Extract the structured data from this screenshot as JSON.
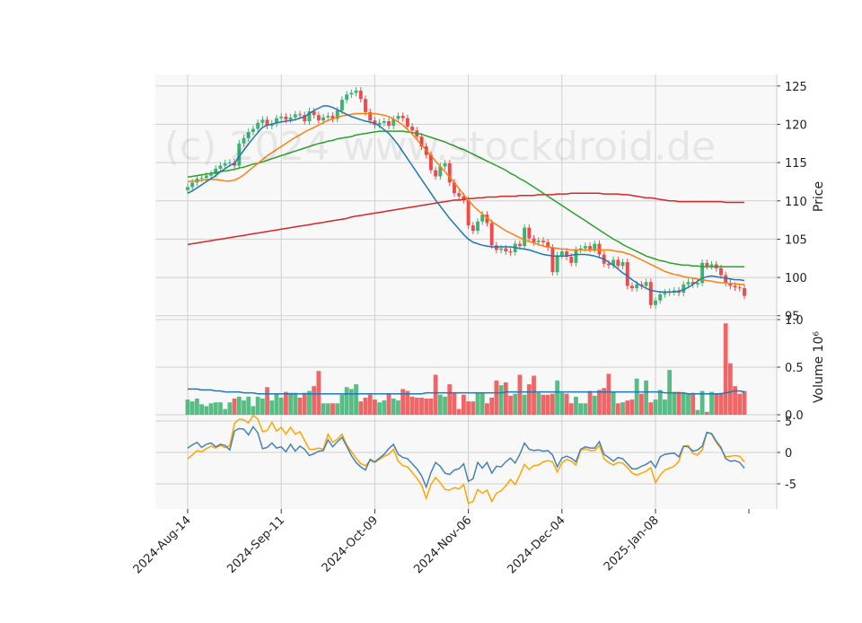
{
  "watermark": "(c) 2024 www.stockdroid.de",
  "colors": {
    "up": "#3cb371",
    "down": "#ef4b4b",
    "ma_short": "#1f77b4",
    "ma_mid": "#ff7f0e",
    "ma_long": "#2ca02c",
    "ma_200": "#d62728",
    "volume_ma": "#1f77b4",
    "osc_a": "#4682b4",
    "osc_b": "#ffa500",
    "panel_bg": "#f8f8f8",
    "grid": "#d0d0d0"
  },
  "chart_data": [
    {
      "type": "candlestick",
      "ylabel": "Price",
      "ylim": [
        94.5,
        126.5
      ],
      "yticks": [
        "95",
        "100",
        "105",
        "110",
        "115",
        "120",
        "125"
      ],
      "xtick_labels": [
        "2024-Aug-14",
        "2024-Sep-11",
        "2024-Oct-09",
        "2024-Nov-06",
        "2024-Dec-04",
        "2025-Jan-08"
      ],
      "xtick_index": [
        0,
        20,
        40,
        60,
        80,
        100
      ],
      "x_count": 120,
      "close": [
        111.8,
        112.4,
        112.9,
        113.0,
        113.3,
        113.5,
        114.2,
        114.6,
        114.9,
        115.0,
        114.6,
        117.5,
        118.2,
        119.0,
        119.4,
        120.2,
        120.6,
        119.8,
        120.1,
        120.8,
        121.0,
        120.6,
        120.9,
        121.3,
        121.2,
        120.4,
        121.7,
        121.2,
        120.5,
        120.9,
        121.1,
        120.7,
        121.8,
        123.2,
        123.9,
        124.1,
        124.4,
        123.3,
        121.6,
        120.5,
        119.9,
        120.2,
        120.4,
        119.8,
        120.7,
        121.1,
        120.8,
        119.7,
        119.2,
        118.4,
        117.1,
        116.0,
        114.0,
        113.2,
        114.5,
        114.9,
        112.4,
        111.0,
        110.6,
        110.1,
        106.8,
        106.1,
        107.3,
        108.2,
        107.1,
        104.2,
        103.6,
        103.8,
        103.4,
        103.3,
        104.4,
        104.1,
        106.5,
        105.1,
        104.6,
        104.8,
        104.6,
        103.9,
        100.7,
        102.9,
        103.4,
        102.7,
        101.9,
        103.6,
        103.8,
        104.1,
        103.7,
        104.4,
        103.0,
        101.8,
        101.6,
        102.3,
        101.5,
        102.0,
        98.9,
        98.6,
        99.1,
        98.9,
        99.4,
        96.4,
        97.0,
        97.8,
        98.0,
        98.1,
        98.3,
        98.0,
        99.1,
        99.4,
        99.1,
        99.3,
        101.9,
        101.5,
        101.7,
        101.2,
        100.3,
        99.3,
        98.9,
        98.7,
        98.6,
        97.6
      ],
      "ma_short": [
        111.0,
        111.3,
        111.7,
        112.1,
        112.5,
        112.9,
        113.3,
        113.8,
        114.2,
        114.6,
        114.9,
        115.8,
        116.6,
        117.4,
        118.2,
        118.9,
        119.6,
        119.9,
        120.0,
        120.2,
        120.3,
        120.4,
        120.5,
        120.6,
        120.8,
        121.0,
        121.4,
        121.8,
        122.1,
        122.4,
        122.4,
        122.2,
        121.9,
        121.6,
        121.3,
        121.0,
        120.8,
        120.6,
        120.4,
        120.3,
        120.1,
        119.8,
        119.3,
        118.8,
        118.1,
        117.3,
        116.4,
        115.5,
        114.6,
        113.7,
        112.8,
        111.9,
        111.0,
        110.1,
        109.3,
        108.5,
        107.7,
        107.0,
        106.3,
        105.6,
        105.0,
        104.6,
        104.4,
        104.2,
        104.1,
        104.0,
        104.0,
        104.0,
        104.0,
        104.0,
        103.9,
        103.8,
        103.7,
        103.6,
        103.4,
        103.2,
        103.0,
        102.9,
        102.8,
        102.8,
        102.8,
        102.8,
        102.9,
        103.0,
        103.0,
        103.0,
        102.9,
        102.8,
        102.6,
        102.4,
        102.0,
        101.6,
        101.1,
        100.6,
        100.2,
        99.7,
        99.3,
        98.9,
        98.6,
        98.3,
        98.2,
        98.1,
        98.1,
        98.1,
        98.1,
        98.2,
        98.4,
        98.7,
        99.1,
        99.5,
        99.9,
        100.1,
        100.2,
        100.1,
        100.0,
        99.9,
        99.8,
        99.7,
        99.7,
        99.6
      ],
      "ma_mid": [
        112.5,
        112.6,
        112.6,
        112.7,
        112.8,
        112.8,
        112.8,
        112.7,
        112.6,
        112.6,
        112.7,
        113.0,
        113.4,
        113.9,
        114.4,
        114.9,
        115.4,
        115.9,
        116.3,
        116.7,
        117.1,
        117.5,
        117.9,
        118.3,
        118.6,
        119.0,
        119.3,
        119.6,
        119.9,
        120.2,
        120.5,
        120.7,
        120.9,
        121.1,
        121.2,
        121.3,
        121.4,
        121.4,
        121.4,
        121.4,
        121.4,
        121.3,
        121.2,
        121.0,
        120.7,
        120.3,
        119.9,
        119.3,
        118.7,
        118.0,
        117.3,
        116.6,
        115.9,
        115.2,
        114.5,
        113.8,
        113.1,
        112.4,
        111.6,
        110.8,
        110.1,
        109.4,
        108.8,
        108.3,
        107.8,
        107.3,
        106.9,
        106.5,
        106.1,
        105.8,
        105.5,
        105.2,
        104.9,
        104.7,
        104.5,
        104.3,
        104.1,
        104.0,
        103.9,
        103.8,
        103.7,
        103.7,
        103.6,
        103.6,
        103.6,
        103.6,
        103.6,
        103.6,
        103.6,
        103.6,
        103.6,
        103.5,
        103.4,
        103.3,
        103.1,
        102.9,
        102.6,
        102.3,
        102.0,
        101.7,
        101.4,
        101.1,
        100.8,
        100.6,
        100.4,
        100.3,
        100.1,
        100.0,
        99.9,
        99.8,
        99.7,
        99.6,
        99.5,
        99.4,
        99.3,
        99.3,
        99.2,
        99.2,
        99.1,
        99.1
      ],
      "ma_long": [
        113.1,
        113.2,
        113.3,
        113.4,
        113.5,
        113.6,
        113.7,
        113.8,
        113.9,
        114.0,
        114.1,
        114.3,
        114.4,
        114.6,
        114.8,
        114.9,
        115.1,
        115.3,
        115.5,
        115.7,
        115.9,
        116.1,
        116.3,
        116.5,
        116.7,
        116.9,
        117.1,
        117.3,
        117.5,
        117.6,
        117.8,
        117.9,
        118.1,
        118.2,
        118.3,
        118.4,
        118.6,
        118.7,
        118.8,
        118.9,
        119.0,
        119.1,
        119.1,
        119.1,
        119.1,
        119.1,
        119.1,
        119.0,
        118.9,
        118.8,
        118.7,
        118.5,
        118.3,
        118.1,
        117.9,
        117.7,
        117.4,
        117.2,
        116.9,
        116.7,
        116.4,
        116.1,
        115.8,
        115.5,
        115.2,
        114.9,
        114.6,
        114.3,
        114.0,
        113.6,
        113.3,
        112.9,
        112.6,
        112.2,
        111.8,
        111.4,
        111.0,
        110.6,
        110.2,
        109.8,
        109.4,
        109.0,
        108.6,
        108.2,
        107.8,
        107.4,
        107.0,
        106.6,
        106.2,
        105.8,
        105.4,
        105.0,
        104.7,
        104.3,
        104.0,
        103.7,
        103.4,
        103.1,
        102.8,
        102.6,
        102.4,
        102.2,
        102.1,
        101.9,
        101.8,
        101.7,
        101.6,
        101.6,
        101.5,
        101.5,
        101.4,
        101.4,
        101.4,
        101.4,
        101.4,
        101.4,
        101.4,
        101.4,
        101.4,
        101.4
      ],
      "ma_200": [
        104.3,
        104.4,
        104.5,
        104.6,
        104.7,
        104.8,
        104.9,
        105.0,
        105.1,
        105.2,
        105.3,
        105.4,
        105.5,
        105.6,
        105.7,
        105.8,
        105.9,
        106.0,
        106.1,
        106.2,
        106.3,
        106.4,
        106.5,
        106.6,
        106.7,
        106.8,
        106.9,
        107.0,
        107.1,
        107.2,
        107.3,
        107.4,
        107.5,
        107.6,
        107.7,
        107.9,
        108.0,
        108.1,
        108.2,
        108.3,
        108.4,
        108.5,
        108.6,
        108.7,
        108.8,
        108.9,
        109.0,
        109.1,
        109.2,
        109.3,
        109.4,
        109.5,
        109.6,
        109.7,
        109.8,
        109.9,
        110.0,
        110.1,
        110.1,
        110.2,
        110.3,
        110.3,
        110.4,
        110.4,
        110.5,
        110.5,
        110.5,
        110.6,
        110.6,
        110.6,
        110.6,
        110.7,
        110.7,
        110.7,
        110.7,
        110.8,
        110.8,
        110.8,
        110.8,
        110.9,
        110.9,
        110.9,
        111.0,
        111.0,
        111.0,
        111.0,
        111.0,
        111.0,
        111.0,
        110.9,
        110.9,
        110.9,
        110.9,
        110.8,
        110.8,
        110.7,
        110.6,
        110.5,
        110.4,
        110.4,
        110.3,
        110.2,
        110.1,
        110.0,
        110.0,
        109.9,
        109.9,
        109.9,
        109.9,
        109.9,
        109.9,
        109.9,
        109.9,
        109.9,
        109.9,
        109.8,
        109.8,
        109.8,
        109.8,
        109.8
      ]
    },
    {
      "type": "bar",
      "ylabel": "Volume  10⁶",
      "ylim": [
        0,
        1.0
      ],
      "yticks": [
        "0.0",
        "0.5",
        "1.0"
      ],
      "values": [
        0.16,
        0.14,
        0.17,
        0.11,
        0.09,
        0.12,
        0.13,
        0.13,
        0.06,
        0.13,
        0.17,
        0.19,
        0.15,
        0.19,
        0.09,
        0.19,
        0.17,
        0.29,
        0.15,
        0.22,
        0.18,
        0.24,
        0.23,
        0.23,
        0.18,
        0.23,
        0.25,
        0.3,
        0.46,
        0.12,
        0.12,
        0.12,
        0.12,
        0.21,
        0.29,
        0.27,
        0.32,
        0.14,
        0.18,
        0.21,
        0.16,
        0.13,
        0.15,
        0.22,
        0.17,
        0.15,
        0.27,
        0.25,
        0.19,
        0.18,
        0.18,
        0.17,
        0.17,
        0.42,
        0.21,
        0.19,
        0.32,
        0.23,
        0.06,
        0.21,
        0.14,
        0.14,
        0.23,
        0.23,
        0.12,
        0.18,
        0.36,
        0.31,
        0.34,
        0.2,
        0.22,
        0.42,
        0.21,
        0.32,
        0.41,
        0.23,
        0.21,
        0.21,
        0.22,
        0.36,
        0.23,
        0.22,
        0.12,
        0.19,
        0.12,
        0.12,
        0.25,
        0.2,
        0.26,
        0.28,
        0.43,
        0.24,
        0.12,
        0.13,
        0.15,
        0.16,
        0.38,
        0.22,
        0.36,
        0.13,
        0.16,
        0.26,
        0.16,
        0.47,
        0.24,
        0.24,
        0.23,
        0.22,
        0.23,
        0.05,
        0.25,
        0.03,
        0.24,
        0.22,
        0.23,
        0.96,
        0.54,
        0.3,
        0.22,
        0.25
      ],
      "ma": [
        0.27,
        0.27,
        0.27,
        0.26,
        0.26,
        0.26,
        0.25,
        0.25,
        0.24,
        0.24,
        0.24,
        0.24,
        0.23,
        0.23,
        0.23,
        0.22,
        0.22,
        0.22,
        0.22,
        0.22,
        0.22,
        0.22,
        0.22,
        0.22,
        0.22,
        0.22,
        0.22,
        0.22,
        0.22,
        0.22,
        0.22,
        0.22,
        0.22,
        0.22,
        0.22,
        0.22,
        0.22,
        0.22,
        0.22,
        0.22,
        0.22,
        0.22,
        0.22,
        0.22,
        0.22,
        0.22,
        0.22,
        0.22,
        0.22,
        0.22,
        0.22,
        0.23,
        0.23,
        0.23,
        0.23,
        0.23,
        0.23,
        0.23,
        0.23,
        0.23,
        0.23,
        0.23,
        0.23,
        0.23,
        0.23,
        0.23,
        0.23,
        0.23,
        0.24,
        0.24,
        0.24,
        0.24,
        0.24,
        0.24,
        0.24,
        0.24,
        0.24,
        0.24,
        0.24,
        0.24,
        0.24,
        0.24,
        0.24,
        0.24,
        0.24,
        0.24,
        0.24,
        0.24,
        0.24,
        0.24,
        0.24,
        0.24,
        0.24,
        0.24,
        0.24,
        0.24,
        0.24,
        0.24,
        0.24,
        0.24,
        0.24,
        0.24,
        0.23,
        0.23,
        0.23,
        0.23,
        0.23,
        0.22,
        0.22,
        0.22,
        0.22,
        0.22,
        0.22,
        0.22,
        0.22,
        0.23,
        0.24,
        0.25,
        0.25,
        0.24
      ]
    },
    {
      "type": "line",
      "ylim": [
        -9,
        6
      ],
      "yticks": [
        "-5",
        "0",
        "5"
      ],
      "series": [
        {
          "values": [
            0.7,
            1.2,
            1.6,
            0.8,
            1.3,
            1.5,
            0.9,
            1.3,
            1.1,
            0.4,
            3.4,
            3.8,
            3.7,
            2.8,
            4.1,
            3.1,
            0.6,
            0.8,
            1.5,
            0.7,
            0.9,
            0.1,
            1.3,
            0.2,
            1.0,
            0.5,
            -0.5,
            -0.2,
            0.2,
            0.3,
            2.0,
            0.9,
            1.7,
            2.4,
            1.0,
            -0.5,
            -1.6,
            -2.3,
            -2.8,
            -1.1,
            -1.5,
            -0.9,
            -0.3,
            0.6,
            1.3,
            -0.3,
            -0.8,
            -1.0,
            -1.8,
            -2.6,
            -3.7,
            -5.5,
            -3.2,
            -1.6,
            -2.2,
            -3.3,
            -3.5,
            -2.8,
            -2.6,
            -1.8,
            -4.6,
            -4.2,
            -1.6,
            -2.5,
            -1.6,
            -3.3,
            -2.2,
            -2.3,
            -1.5,
            -0.9,
            -1.7,
            -0.3,
            1.5,
            0.5,
            0.3,
            0.4,
            0.2,
            0.3,
            -0.4,
            -2.3,
            -0.9,
            -0.6,
            -0.9,
            -1.5,
            0.5,
            0.9,
            0.7,
            0.7,
            1.7,
            -0.3,
            -0.8,
            -1.4,
            -0.8,
            -1.0,
            -1.8,
            -2.6,
            -2.6,
            -2.2,
            -1.9,
            -1.4,
            -2.4,
            -0.7,
            -0.3,
            -0.2,
            -0.1,
            -0.7,
            1.0,
            0.9,
            0.2,
            0.4,
            1.0,
            3.2,
            3.0,
            1.8,
            0.8,
            -1.0,
            -1.4,
            -1.3,
            -1.6,
            -2.5
          ]
        },
        {
          "values": [
            -1.0,
            -0.4,
            0.3,
            0.1,
            0.6,
            1.0,
            0.7,
            1.1,
            0.8,
            1.1,
            4.6,
            5.3,
            5.2,
            4.7,
            5.9,
            5.3,
            3.3,
            3.5,
            4.8,
            3.4,
            4.0,
            2.9,
            4.0,
            2.9,
            3.3,
            1.9,
            0.5,
            0.5,
            0.7,
            0.5,
            2.9,
            1.6,
            2.1,
            2.9,
            1.2,
            0.1,
            -0.9,
            -1.8,
            -2.1,
            -1.3,
            -1.6,
            -1.1,
            -0.6,
            -0.3,
            0.5,
            -1.4,
            -2.1,
            -2.3,
            -3.2,
            -4.1,
            -5.2,
            -7.3,
            -5.1,
            -4.0,
            -4.8,
            -5.9,
            -6.0,
            -5.6,
            -5.8,
            -5.1,
            -8.1,
            -7.8,
            -5.9,
            -6.5,
            -6.0,
            -7.8,
            -6.5,
            -6.1,
            -5.3,
            -4.3,
            -5.1,
            -3.6,
            -1.9,
            -2.7,
            -2.1,
            -2.0,
            -1.5,
            -1.3,
            -1.5,
            -3.1,
            -1.7,
            -1.1,
            -1.4,
            -2.0,
            0.3,
            0.6,
            0.3,
            0.3,
            1.1,
            -1.0,
            -1.6,
            -2.0,
            -1.6,
            -1.7,
            -2.4,
            -3.3,
            -3.6,
            -3.3,
            -3.0,
            -2.4,
            -4.8,
            -3.6,
            -2.8,
            -2.5,
            -2.2,
            -1.4,
            1.0,
            1.1,
            -0.2,
            -0.4,
            0.4,
            3.2,
            2.9,
            1.6,
            0.6,
            -0.7,
            -0.6,
            -0.5,
            -0.6,
            -1.5
          ]
        }
      ]
    }
  ]
}
